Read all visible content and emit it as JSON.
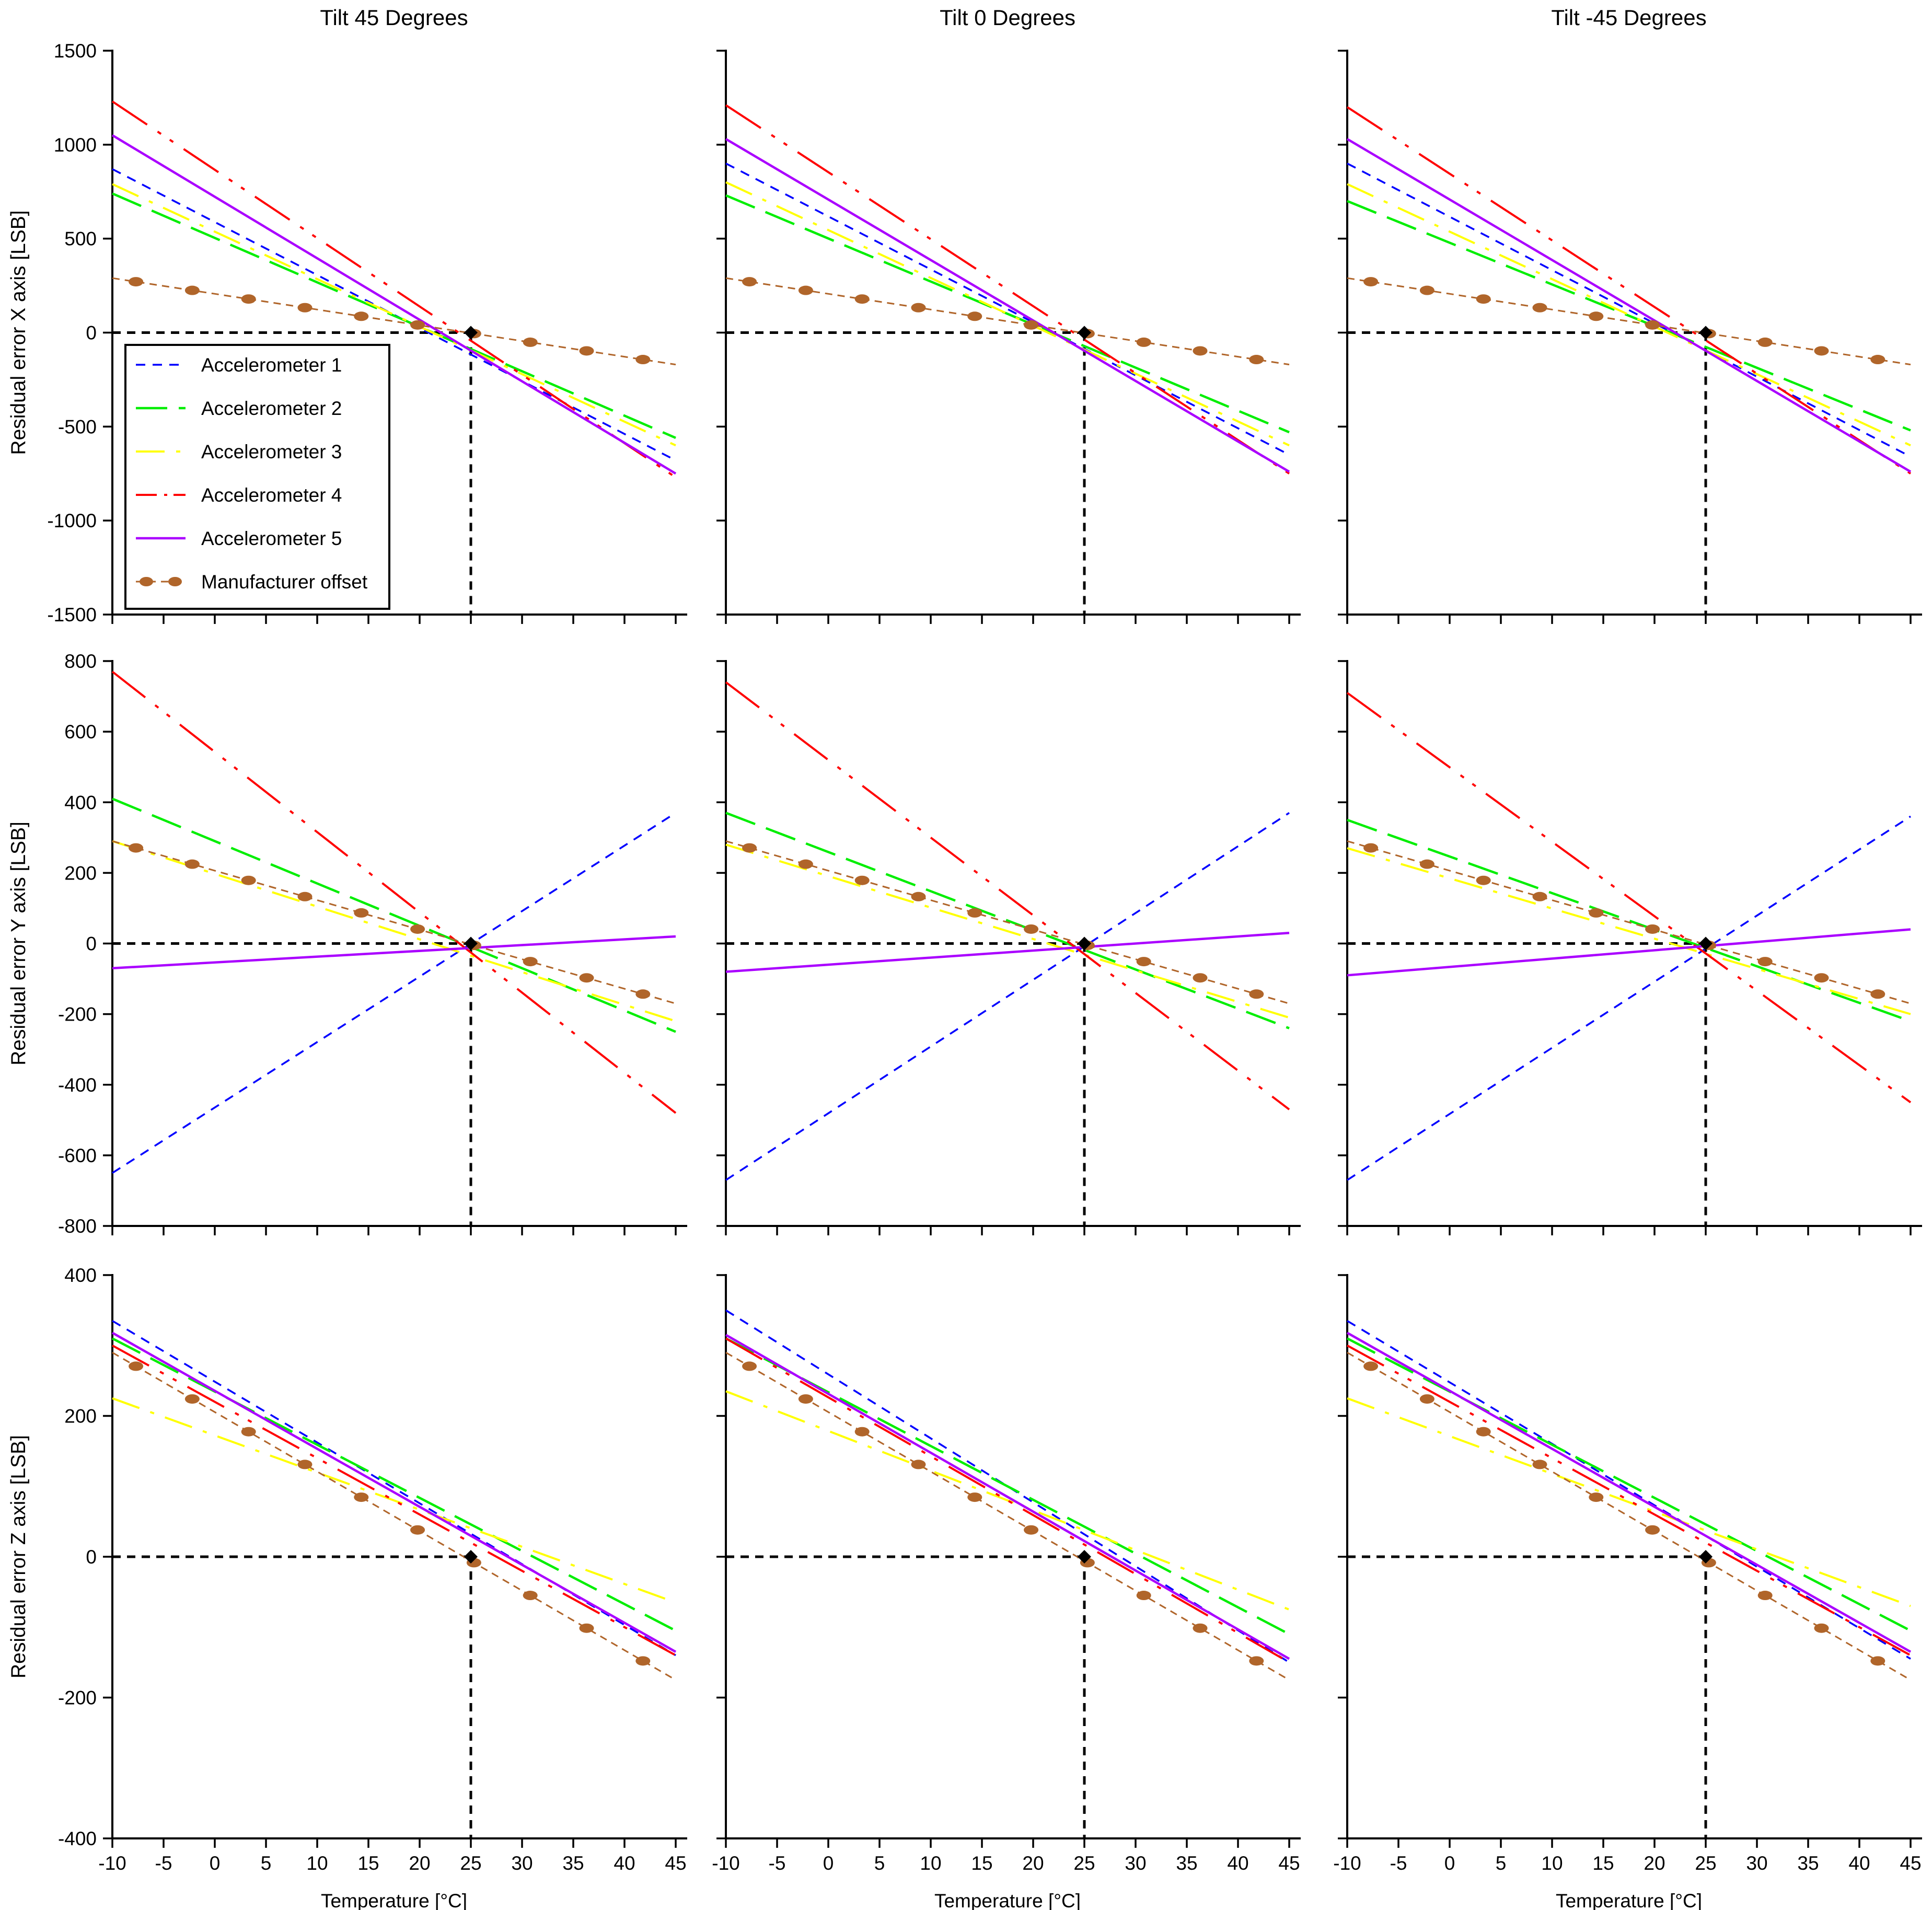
{
  "figure": {
    "column_titles": [
      "Tilt 45 Degrees",
      "Tilt 0 Degrees",
      "Tilt -45 Degrees"
    ],
    "row_ylabels": [
      "Residual error X axis [LSB]",
      "Residual error Y axis [LSB]",
      "Residual error Z axis [LSB]"
    ],
    "xlabel": "Temperature [°C]"
  },
  "legend": {
    "placement": "top-left of first panel",
    "entries": [
      "Accelerometer 1",
      "Accelerometer 2",
      "Accelerometer 3",
      "Accelerometer 4",
      "Accelerometer 5",
      "Manufacturer offset"
    ]
  },
  "series_styles": [
    {
      "name": "Accelerometer 1",
      "color": "#0000ff",
      "dash": "short-dash"
    },
    {
      "name": "Accelerometer 2",
      "color": "#00ee00",
      "dash": "long-dash"
    },
    {
      "name": "Accelerometer 3",
      "color": "#ffff00",
      "dash": "dash-dot"
    },
    {
      "name": "Accelerometer 4",
      "color": "#ff0000",
      "dash": "dash-dot-dot"
    },
    {
      "name": "Accelerometer 5",
      "color": "#aa00ff",
      "dash": "solid"
    },
    {
      "name": "Manufacturer offset",
      "color": "#b0652a",
      "dash": "dash with markers"
    }
  ],
  "reference": {
    "x": 25,
    "y": 0,
    "marker": "diamond",
    "color": "#000000"
  },
  "chart_data": [
    {
      "type": "line",
      "title": "Tilt 45 Degrees",
      "ylabel": "Residual error X axis [LSB]",
      "xlabel": "",
      "xlim": [
        -10,
        45
      ],
      "ylim": [
        -1500,
        1500
      ],
      "xticks": [
        -10,
        -5,
        0,
        5,
        10,
        15,
        20,
        25,
        30,
        35,
        40,
        45
      ],
      "yticks": [
        1500,
        1000,
        500,
        0,
        -500,
        -1000,
        -1500
      ],
      "x": [
        -10,
        45
      ],
      "series": [
        {
          "name": "Accelerometer 1",
          "values": [
            870,
            -680
          ]
        },
        {
          "name": "Accelerometer 2",
          "values": [
            740,
            -560
          ]
        },
        {
          "name": "Accelerometer 3",
          "values": [
            790,
            -600
          ]
        },
        {
          "name": "Accelerometer 4",
          "values": [
            1230,
            -770
          ]
        },
        {
          "name": "Accelerometer 5",
          "values": [
            1050,
            -750
          ]
        },
        {
          "name": "Manufacturer offset",
          "values": [
            290,
            -170
          ]
        }
      ]
    },
    {
      "type": "line",
      "title": "Tilt 0 Degrees",
      "ylabel": "",
      "xlabel": "",
      "xlim": [
        -10,
        45
      ],
      "ylim": [
        -1500,
        1500
      ],
      "xticks": [
        -10,
        -5,
        0,
        5,
        10,
        15,
        20,
        25,
        30,
        35,
        40,
        45
      ],
      "yticks": [
        1500,
        1000,
        500,
        0,
        -500,
        -1000,
        -1500
      ],
      "x": [
        -10,
        45
      ],
      "series": [
        {
          "name": "Accelerometer 1",
          "values": [
            900,
            -650
          ]
        },
        {
          "name": "Accelerometer 2",
          "values": [
            730,
            -530
          ]
        },
        {
          "name": "Accelerometer 3",
          "values": [
            800,
            -600
          ]
        },
        {
          "name": "Accelerometer 4",
          "values": [
            1210,
            -750
          ]
        },
        {
          "name": "Accelerometer 5",
          "values": [
            1030,
            -740
          ]
        },
        {
          "name": "Manufacturer offset",
          "values": [
            290,
            -170
          ]
        }
      ]
    },
    {
      "type": "line",
      "title": "Tilt -45 Degrees",
      "ylabel": "",
      "xlabel": "",
      "xlim": [
        -10,
        45
      ],
      "ylim": [
        -1500,
        1500
      ],
      "xticks": [
        -10,
        -5,
        0,
        5,
        10,
        15,
        20,
        25,
        30,
        35,
        40,
        45
      ],
      "yticks": [
        1500,
        1000,
        500,
        0,
        -500,
        -1000,
        -1500
      ],
      "x": [
        -10,
        45
      ],
      "series": [
        {
          "name": "Accelerometer 1",
          "values": [
            900,
            -660
          ]
        },
        {
          "name": "Accelerometer 2",
          "values": [
            700,
            -520
          ]
        },
        {
          "name": "Accelerometer 3",
          "values": [
            790,
            -600
          ]
        },
        {
          "name": "Accelerometer 4",
          "values": [
            1200,
            -750
          ]
        },
        {
          "name": "Accelerometer 5",
          "values": [
            1030,
            -740
          ]
        },
        {
          "name": "Manufacturer offset",
          "values": [
            290,
            -170
          ]
        }
      ]
    },
    {
      "type": "line",
      "title": "",
      "ylabel": "Residual error Y axis [LSB]",
      "xlabel": "",
      "xlim": [
        -10,
        45
      ],
      "ylim": [
        -800,
        800
      ],
      "xticks": [
        -10,
        -5,
        0,
        5,
        10,
        15,
        20,
        25,
        30,
        35,
        40,
        45
      ],
      "yticks": [
        800,
        600,
        400,
        200,
        0,
        -200,
        -400,
        -600,
        -800
      ],
      "x": [
        -10,
        45
      ],
      "series": [
        {
          "name": "Accelerometer 1",
          "values": [
            -650,
            370
          ]
        },
        {
          "name": "Accelerometer 2",
          "values": [
            410,
            -250
          ]
        },
        {
          "name": "Accelerometer 3",
          "values": [
            290,
            -220
          ]
        },
        {
          "name": "Accelerometer 4",
          "values": [
            770,
            -480
          ]
        },
        {
          "name": "Accelerometer 5",
          "values": [
            -70,
            20
          ]
        },
        {
          "name": "Manufacturer offset",
          "values": [
            290,
            -170
          ]
        }
      ]
    },
    {
      "type": "line",
      "title": "",
      "ylabel": "",
      "xlabel": "",
      "xlim": [
        -10,
        45
      ],
      "ylim": [
        -800,
        800
      ],
      "xticks": [
        -10,
        -5,
        0,
        5,
        10,
        15,
        20,
        25,
        30,
        35,
        40,
        45
      ],
      "yticks": [
        800,
        600,
        400,
        200,
        0,
        -200,
        -400,
        -600,
        -800
      ],
      "x": [
        -10,
        45
      ],
      "series": [
        {
          "name": "Accelerometer 1",
          "values": [
            -670,
            370
          ]
        },
        {
          "name": "Accelerometer 2",
          "values": [
            370,
            -240
          ]
        },
        {
          "name": "Accelerometer 3",
          "values": [
            280,
            -210
          ]
        },
        {
          "name": "Accelerometer 4",
          "values": [
            740,
            -470
          ]
        },
        {
          "name": "Accelerometer 5",
          "values": [
            -80,
            30
          ]
        },
        {
          "name": "Manufacturer offset",
          "values": [
            290,
            -170
          ]
        }
      ]
    },
    {
      "type": "line",
      "title": "",
      "ylabel": "",
      "xlabel": "",
      "xlim": [
        -10,
        45
      ],
      "ylim": [
        -800,
        800
      ],
      "xticks": [
        -10,
        -5,
        0,
        5,
        10,
        15,
        20,
        25,
        30,
        35,
        40,
        45
      ],
      "yticks": [
        800,
        600,
        400,
        200,
        0,
        -200,
        -400,
        -600,
        -800
      ],
      "x": [
        -10,
        45
      ],
      "series": [
        {
          "name": "Accelerometer 1",
          "values": [
            -670,
            360
          ]
        },
        {
          "name": "Accelerometer 2",
          "values": [
            350,
            -220
          ]
        },
        {
          "name": "Accelerometer 3",
          "values": [
            270,
            -200
          ]
        },
        {
          "name": "Accelerometer 4",
          "values": [
            710,
            -450
          ]
        },
        {
          "name": "Accelerometer 5",
          "values": [
            -90,
            40
          ]
        },
        {
          "name": "Manufacturer offset",
          "values": [
            290,
            -170
          ]
        }
      ]
    },
    {
      "type": "line",
      "title": "",
      "ylabel": "Residual error Z axis [LSB]",
      "xlabel": "Temperature [°C]",
      "xlim": [
        -10,
        45
      ],
      "ylim": [
        -400,
        400
      ],
      "xticks": [
        -10,
        -5,
        0,
        5,
        10,
        15,
        20,
        25,
        30,
        35,
        40,
        45
      ],
      "yticks": [
        400,
        200,
        0,
        -200,
        -400
      ],
      "x": [
        -10,
        45
      ],
      "series": [
        {
          "name": "Accelerometer 1",
          "values": [
            335,
            -140
          ]
        },
        {
          "name": "Accelerometer 2",
          "values": [
            310,
            -105
          ]
        },
        {
          "name": "Accelerometer 3",
          "values": [
            225,
            -65
          ]
        },
        {
          "name": "Accelerometer 4",
          "values": [
            300,
            -140
          ]
        },
        {
          "name": "Accelerometer 5",
          "values": [
            318,
            -135
          ]
        },
        {
          "name": "Manufacturer offset",
          "values": [
            290,
            -175
          ]
        }
      ]
    },
    {
      "type": "line",
      "title": "",
      "ylabel": "",
      "xlabel": "Temperature [°C]",
      "xlim": [
        -10,
        45
      ],
      "ylim": [
        -400,
        400
      ],
      "xticks": [
        -10,
        -5,
        0,
        5,
        10,
        15,
        20,
        25,
        30,
        35,
        40,
        45
      ],
      "yticks": [
        400,
        200,
        0,
        -200,
        -400
      ],
      "x": [
        -10,
        45
      ],
      "series": [
        {
          "name": "Accelerometer 1",
          "values": [
            350,
            -150
          ]
        },
        {
          "name": "Accelerometer 2",
          "values": [
            310,
            -110
          ]
        },
        {
          "name": "Accelerometer 3",
          "values": [
            235,
            -75
          ]
        },
        {
          "name": "Accelerometer 4",
          "values": [
            310,
            -150
          ]
        },
        {
          "name": "Accelerometer 5",
          "values": [
            315,
            -145
          ]
        },
        {
          "name": "Manufacturer offset",
          "values": [
            290,
            -175
          ]
        }
      ]
    },
    {
      "type": "line",
      "title": "",
      "ylabel": "",
      "xlabel": "Temperature [°C]",
      "xlim": [
        -10,
        45
      ],
      "ylim": [
        -400,
        400
      ],
      "xticks": [
        -10,
        -5,
        0,
        5,
        10,
        15,
        20,
        25,
        30,
        35,
        40,
        45
      ],
      "yticks": [
        400,
        200,
        0,
        -200,
        -400
      ],
      "x": [
        -10,
        45
      ],
      "series": [
        {
          "name": "Accelerometer 1",
          "values": [
            335,
            -145
          ]
        },
        {
          "name": "Accelerometer 2",
          "values": [
            310,
            -105
          ]
        },
        {
          "name": "Accelerometer 3",
          "values": [
            225,
            -70
          ]
        },
        {
          "name": "Accelerometer 4",
          "values": [
            300,
            -140
          ]
        },
        {
          "name": "Accelerometer 5",
          "values": [
            318,
            -135
          ]
        },
        {
          "name": "Manufacturer offset",
          "values": [
            290,
            -175
          ]
        }
      ]
    }
  ]
}
